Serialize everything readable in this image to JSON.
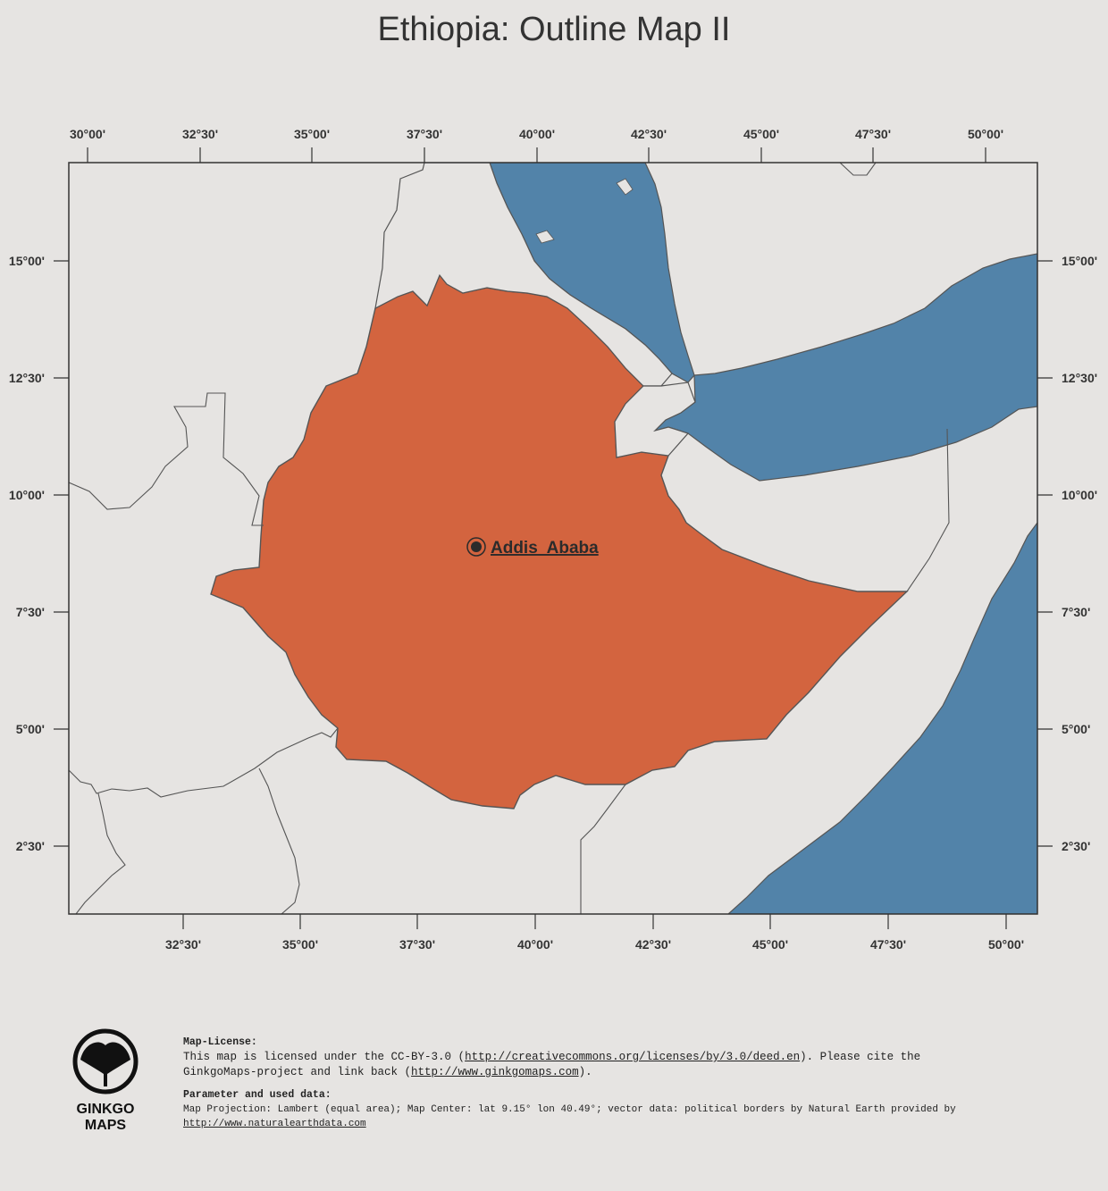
{
  "title": "Ethiopia: Outline Map II",
  "axes": {
    "top_lon_labels": [
      "30°00'",
      "32°30'",
      "35°00'",
      "37°30'",
      "40°00'",
      "42°30'",
      "45°00'",
      "47°30'",
      "50°00'"
    ],
    "bottom_lon_labels": [
      "32°30'",
      "35°00'",
      "37°30'",
      "40°00'",
      "42°30'",
      "45°00'",
      "47°30'",
      "50°00'"
    ],
    "lat_labels": [
      "15°00'",
      "12°30'",
      "10°00'",
      "7°30'",
      "5°00'",
      "2°30'"
    ]
  },
  "capital": {
    "name": "Addis  Ababa",
    "lat": 9.03,
    "lon": 38.74
  },
  "colors": {
    "background": "#e6e4e2",
    "ethiopia_fill": "#d3643f",
    "water": "#5283a9",
    "land": "#e6e4e2",
    "border": "#555555"
  },
  "license": {
    "heading": "Map-License:",
    "line1_prefix": "This map is licensed under the CC-BY-3.0 (",
    "line1_link": "http://creativecommons.org/licenses/by/3.0/deed.en",
    "line1_suffix": ").  Please cite the",
    "line2_prefix": "GinkgoMaps-project and link back (",
    "line2_link": "http://www.ginkgomaps.com",
    "line2_suffix": ")."
  },
  "params": {
    "heading": "Parameter and used data:",
    "line1": "Map Projection: Lambert (equal area); Map Center: lat 9.15° lon 40.49°; vector data: political borders by Natural Earth provided by",
    "link": "http://www.naturalearthdata.com"
  },
  "logo": {
    "text": "GINKGO\nMAPS",
    "icon": "ginkgo-leaf-icon"
  }
}
